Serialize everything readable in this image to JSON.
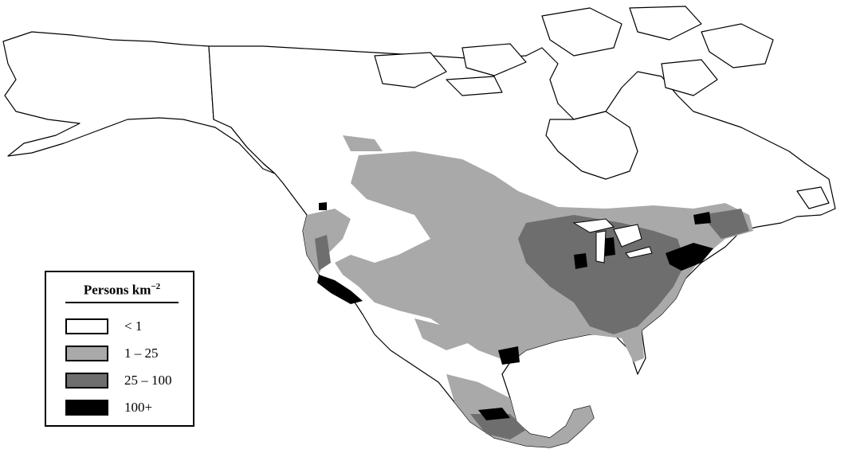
{
  "legend": {
    "title": "Persons km",
    "title_exponent": "−2",
    "classes": [
      {
        "label": "< 1",
        "color": "#ffffff"
      },
      {
        "label": "1 – 25",
        "color": "#a9a9a9"
      },
      {
        "label": "25 – 100",
        "color": "#6e6e6e"
      },
      {
        "label": "100+",
        "color": "#000000"
      }
    ]
  },
  "map": {
    "region": "North America",
    "land_outline_color": "#000000",
    "water_color": "#ffffff"
  }
}
